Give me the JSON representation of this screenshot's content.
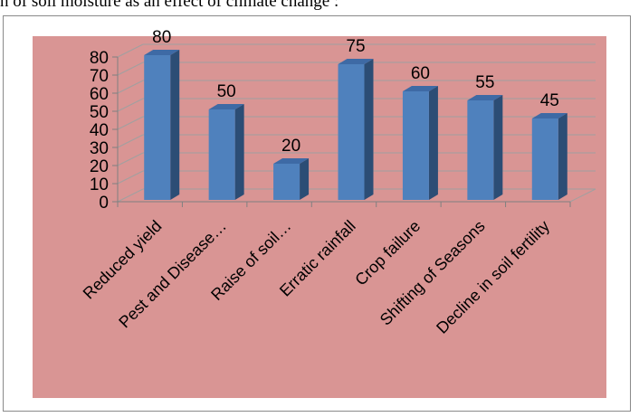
{
  "caption": "n of soil moisture as an effect of climate change :",
  "colors": {
    "plot_area": "#d99594",
    "gridline": "#a0a0a0",
    "bar_front": "#4f81bd",
    "bar_side": "#2c4d75",
    "bar_top": "#3e6aa5",
    "text": "#000000"
  },
  "chart_data": {
    "type": "bar",
    "style": "3d-column",
    "categories": [
      "Reduced yield",
      "Pest and Disease…",
      "Raise of soil…",
      "Erratic rainfall",
      "Crop failure",
      "Shifting of Seasons",
      "Decline in soil fertility"
    ],
    "values": [
      80,
      50,
      20,
      75,
      60,
      55,
      45
    ],
    "data_labels": [
      "80",
      "50",
      "20",
      "75",
      "60",
      "55",
      "45"
    ],
    "y_ticks": [
      "0",
      "10",
      "20",
      "30",
      "40",
      "50",
      "60",
      "70",
      "80"
    ],
    "ylim": [
      0,
      80
    ],
    "grid": true,
    "legend": "none"
  }
}
